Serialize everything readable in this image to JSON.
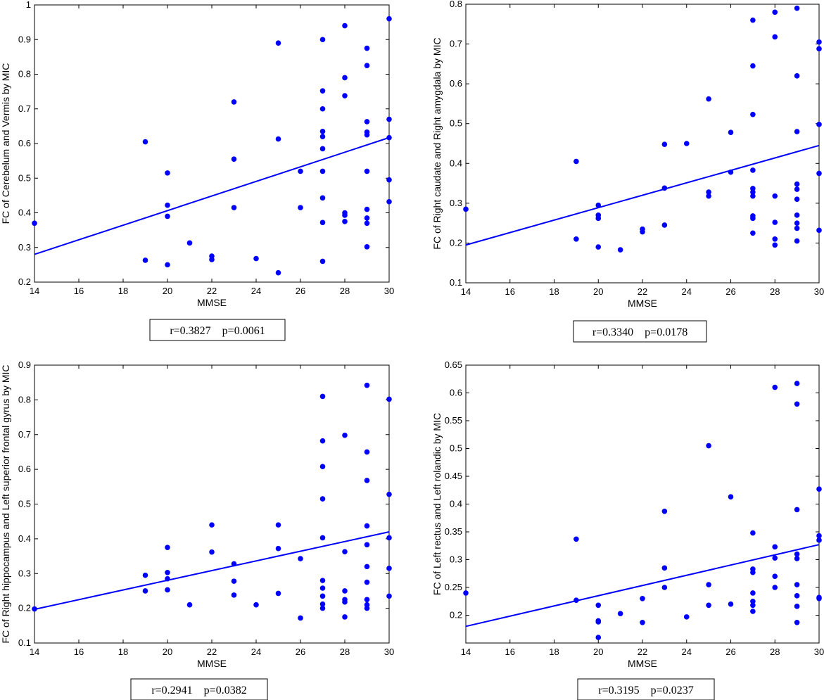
{
  "chart_data": [
    {
      "type": "scatter",
      "xlabel": "MMSE",
      "ylabel": "FC of Cerebelum and Vermis by MIC",
      "xlim": [
        14,
        30
      ],
      "ylim": [
        0.2,
        1
      ],
      "xticks": [
        14,
        16,
        18,
        20,
        22,
        24,
        26,
        28,
        30
      ],
      "xtick_labels": [
        "14",
        "16",
        "18",
        "20",
        "22",
        "24",
        "26",
        "28",
        "30"
      ],
      "yticks": [
        0.2,
        0.3,
        0.4,
        0.5,
        0.6,
        0.7,
        0.8,
        0.9,
        1.0
      ],
      "ytick_labels": [
        "0.2",
        "0.3",
        "0.4",
        "0.5",
        "0.6",
        "0.7",
        "0.8",
        "0.9",
        "1"
      ],
      "points": [
        [
          14,
          0.37
        ],
        [
          19,
          0.605
        ],
        [
          19,
          0.263
        ],
        [
          20,
          0.515
        ],
        [
          20,
          0.422
        ],
        [
          20,
          0.39
        ],
        [
          20,
          0.25
        ],
        [
          21,
          0.313
        ],
        [
          22,
          0.275
        ],
        [
          22,
          0.265
        ],
        [
          23,
          0.72
        ],
        [
          23,
          0.555
        ],
        [
          23,
          0.415
        ],
        [
          24,
          0.268
        ],
        [
          25,
          0.89
        ],
        [
          25,
          0.613
        ],
        [
          25,
          0.227
        ],
        [
          26,
          0.52
        ],
        [
          26,
          0.415
        ],
        [
          27,
          0.9
        ],
        [
          27,
          0.752
        ],
        [
          27,
          0.7
        ],
        [
          27,
          0.635
        ],
        [
          27,
          0.62
        ],
        [
          27,
          0.585
        ],
        [
          27,
          0.52
        ],
        [
          27,
          0.443
        ],
        [
          27,
          0.372
        ],
        [
          27,
          0.26
        ],
        [
          28,
          0.94
        ],
        [
          28,
          0.79
        ],
        [
          28,
          0.738
        ],
        [
          28,
          0.4
        ],
        [
          28,
          0.393
        ],
        [
          28,
          0.375
        ],
        [
          29,
          0.875
        ],
        [
          29,
          0.825
        ],
        [
          29,
          0.663
        ],
        [
          29,
          0.633
        ],
        [
          29,
          0.625
        ],
        [
          29,
          0.52
        ],
        [
          29,
          0.41
        ],
        [
          29,
          0.385
        ],
        [
          29,
          0.37
        ],
        [
          29,
          0.302
        ],
        [
          30,
          0.96
        ],
        [
          30,
          0.67
        ],
        [
          30,
          0.617
        ],
        [
          30,
          0.495
        ],
        [
          30,
          0.432
        ]
      ],
      "fit_line": {
        "x": [
          14,
          30
        ],
        "y": [
          0.28,
          0.617
        ]
      },
      "stat_label": "r=0.3827    p=0.0061"
    },
    {
      "type": "scatter",
      "xlabel": "MMSE",
      "ylabel": "FC of Right caudate and Right amygdala by MIC",
      "xlim": [
        14,
        30
      ],
      "ylim": [
        0.1,
        0.8
      ],
      "xticks": [
        14,
        16,
        18,
        20,
        22,
        24,
        26,
        28,
        30
      ],
      "xtick_labels": [
        "14",
        "16",
        "18",
        "20",
        "22",
        "24",
        "26",
        "28",
        "30"
      ],
      "yticks": [
        0.1,
        0.2,
        0.3,
        0.4,
        0.5,
        0.6,
        0.7,
        0.8
      ],
      "ytick_labels": [
        "0.1",
        "0.2",
        "0.3",
        "0.4",
        "0.5",
        "0.6",
        "0.7",
        "0.8"
      ],
      "points": [
        [
          14,
          0.285
        ],
        [
          19,
          0.405
        ],
        [
          19,
          0.21
        ],
        [
          20,
          0.295
        ],
        [
          20,
          0.27
        ],
        [
          20,
          0.262
        ],
        [
          20,
          0.19
        ],
        [
          21,
          0.183
        ],
        [
          22,
          0.235
        ],
        [
          22,
          0.228
        ],
        [
          23,
          0.448
        ],
        [
          23,
          0.338
        ],
        [
          23,
          0.245
        ],
        [
          24,
          0.45
        ],
        [
          25,
          0.562
        ],
        [
          25,
          0.328
        ],
        [
          25,
          0.318
        ],
        [
          26,
          0.478
        ],
        [
          26,
          0.378
        ],
        [
          27,
          0.76
        ],
        [
          27,
          0.645
        ],
        [
          27,
          0.523
        ],
        [
          27,
          0.383
        ],
        [
          27,
          0.337
        ],
        [
          27,
          0.328
        ],
        [
          27,
          0.318
        ],
        [
          27,
          0.268
        ],
        [
          27,
          0.262
        ],
        [
          27,
          0.225
        ],
        [
          28,
          0.78
        ],
        [
          28,
          0.718
        ],
        [
          28,
          0.318
        ],
        [
          28,
          0.252
        ],
        [
          28,
          0.21
        ],
        [
          28,
          0.195
        ],
        [
          29,
          0.79
        ],
        [
          29,
          0.62
        ],
        [
          29,
          0.48
        ],
        [
          29,
          0.348
        ],
        [
          29,
          0.335
        ],
        [
          29,
          0.31
        ],
        [
          29,
          0.27
        ],
        [
          29,
          0.25
        ],
        [
          29,
          0.237
        ],
        [
          29,
          0.205
        ],
        [
          30,
          0.705
        ],
        [
          30,
          0.688
        ],
        [
          30,
          0.498
        ],
        [
          30,
          0.375
        ],
        [
          30,
          0.232
        ]
      ],
      "fit_line": {
        "x": [
          14,
          30
        ],
        "y": [
          0.195,
          0.445
        ]
      },
      "stat_label": "r=0.3340    p=0.0178"
    },
    {
      "type": "scatter",
      "xlabel": "MMSE",
      "ylabel": "FC of Right hippocampus and Left superior frontal gyrus by MIC",
      "xlim": [
        14,
        30
      ],
      "ylim": [
        0.1,
        0.9
      ],
      "xticks": [
        14,
        16,
        18,
        20,
        22,
        24,
        26,
        28,
        30
      ],
      "xtick_labels": [
        "14",
        "16",
        "18",
        "20",
        "22",
        "24",
        "26",
        "28",
        "30"
      ],
      "yticks": [
        0.1,
        0.2,
        0.3,
        0.4,
        0.5,
        0.6,
        0.7,
        0.8,
        0.9
      ],
      "ytick_labels": [
        "0.1",
        "0.2",
        "0.3",
        "0.4",
        "0.5",
        "0.6",
        "0.7",
        "0.8",
        "0.9"
      ],
      "points": [
        [
          14,
          0.198
        ],
        [
          19,
          0.295
        ],
        [
          19,
          0.25
        ],
        [
          20,
          0.375
        ],
        [
          20,
          0.303
        ],
        [
          20,
          0.285
        ],
        [
          20,
          0.253
        ],
        [
          21,
          0.21
        ],
        [
          22,
          0.44
        ],
        [
          22,
          0.362
        ],
        [
          23,
          0.328
        ],
        [
          23,
          0.278
        ],
        [
          23,
          0.238
        ],
        [
          24,
          0.21
        ],
        [
          25,
          0.44
        ],
        [
          25,
          0.372
        ],
        [
          25,
          0.243
        ],
        [
          26,
          0.343
        ],
        [
          26,
          0.172
        ],
        [
          27,
          0.81
        ],
        [
          27,
          0.682
        ],
        [
          27,
          0.608
        ],
        [
          27,
          0.515
        ],
        [
          27,
          0.403
        ],
        [
          27,
          0.28
        ],
        [
          27,
          0.258
        ],
        [
          27,
          0.235
        ],
        [
          27,
          0.212
        ],
        [
          27,
          0.2
        ],
        [
          28,
          0.698
        ],
        [
          28,
          0.363
        ],
        [
          28,
          0.25
        ],
        [
          28,
          0.225
        ],
        [
          28,
          0.218
        ],
        [
          28,
          0.175
        ],
        [
          29,
          0.842
        ],
        [
          29,
          0.65
        ],
        [
          29,
          0.568
        ],
        [
          29,
          0.437
        ],
        [
          29,
          0.383
        ],
        [
          29,
          0.32
        ],
        [
          29,
          0.275
        ],
        [
          29,
          0.225
        ],
        [
          29,
          0.21
        ],
        [
          29,
          0.2
        ],
        [
          30,
          0.802
        ],
        [
          30,
          0.528
        ],
        [
          30,
          0.403
        ],
        [
          30,
          0.315
        ],
        [
          30,
          0.235
        ]
      ],
      "fit_line": {
        "x": [
          14,
          30
        ],
        "y": [
          0.197,
          0.42
        ]
      },
      "stat_label": "r=0.2941    p=0.0382"
    },
    {
      "type": "scatter",
      "xlabel": "MMSE",
      "ylabel": "FC of Left rectus and Left rolandic by MIC",
      "xlim": [
        14,
        30
      ],
      "ylim": [
        0.15,
        0.65
      ],
      "xticks": [
        14,
        16,
        18,
        20,
        22,
        24,
        26,
        28,
        30
      ],
      "xtick_labels": [
        "14",
        "16",
        "18",
        "20",
        "22",
        "24",
        "26",
        "28",
        "30"
      ],
      "yticks": [
        0.2,
        0.25,
        0.3,
        0.35,
        0.4,
        0.45,
        0.5,
        0.55,
        0.6,
        0.65
      ],
      "ytick_labels": [
        "0.2",
        "0.25",
        "0.3",
        "0.35",
        "0.4",
        "0.45",
        "0.5",
        "0.55",
        "0.6",
        "0.65"
      ],
      "points": [
        [
          14,
          0.24
        ],
        [
          19,
          0.337
        ],
        [
          19,
          0.227
        ],
        [
          20,
          0.218
        ],
        [
          20,
          0.19
        ],
        [
          20,
          0.188
        ],
        [
          20,
          0.16
        ],
        [
          21,
          0.203
        ],
        [
          22,
          0.23
        ],
        [
          22,
          0.187
        ],
        [
          23,
          0.387
        ],
        [
          23,
          0.285
        ],
        [
          23,
          0.25
        ],
        [
          24,
          0.197
        ],
        [
          25,
          0.505
        ],
        [
          25,
          0.255
        ],
        [
          25,
          0.218
        ],
        [
          26,
          0.413
        ],
        [
          26,
          0.22
        ],
        [
          27,
          0.348
        ],
        [
          27,
          0.283
        ],
        [
          27,
          0.277
        ],
        [
          27,
          0.24
        ],
        [
          27,
          0.225
        ],
        [
          27,
          0.218
        ],
        [
          27,
          0.207
        ],
        [
          28,
          0.61
        ],
        [
          28,
          0.323
        ],
        [
          28,
          0.303
        ],
        [
          28,
          0.27
        ],
        [
          28,
          0.25
        ],
        [
          29,
          0.617
        ],
        [
          29,
          0.58
        ],
        [
          29,
          0.39
        ],
        [
          29,
          0.31
        ],
        [
          29,
          0.302
        ],
        [
          29,
          0.255
        ],
        [
          29,
          0.235
        ],
        [
          29,
          0.216
        ],
        [
          29,
          0.187
        ],
        [
          30,
          0.427
        ],
        [
          30,
          0.343
        ],
        [
          30,
          0.335
        ],
        [
          30,
          0.232
        ],
        [
          30,
          0.23
        ]
      ],
      "fit_line": {
        "x": [
          14,
          30
        ],
        "y": [
          0.18,
          0.327
        ]
      },
      "stat_label": "r=0.3195    p=0.0237"
    }
  ],
  "colors": {
    "marker": "#0000ff",
    "line": "#0000ff",
    "axis": "#000000"
  }
}
